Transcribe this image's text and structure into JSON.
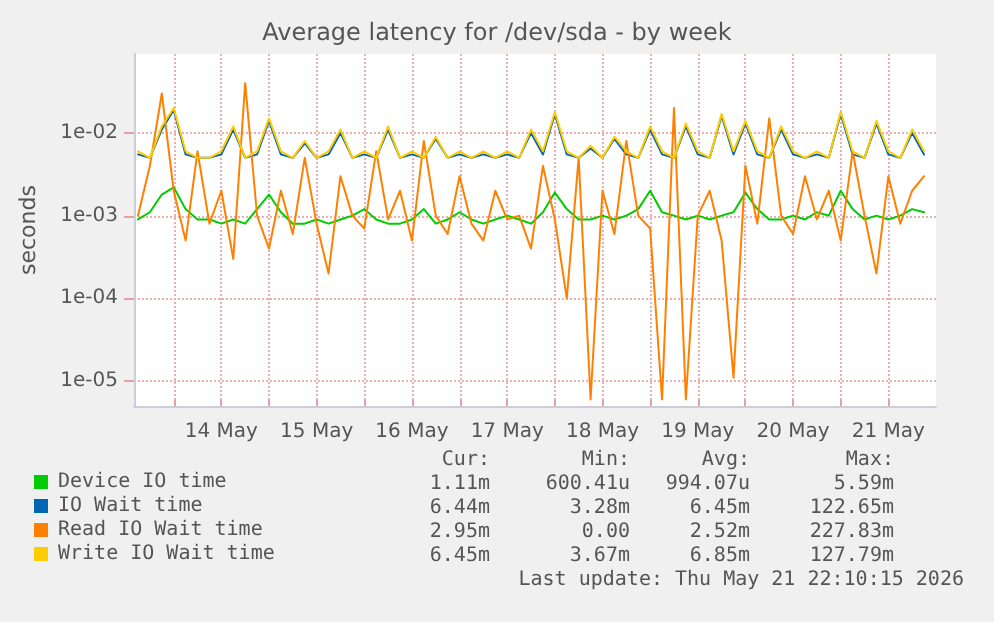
{
  "chart_data": {
    "type": "line",
    "title": "Average latency for /dev/sda - by week",
    "ylabel": "seconds",
    "log": "y",
    "grid": true,
    "legend": "bottom",
    "marker": "none",
    "line_style": "solid",
    "ylim": [
      5e-06,
      0.09
    ],
    "yticks": [
      {
        "value": 1e-05,
        "label": "1e-05"
      },
      {
        "value": 0.0001,
        "label": "1e-04"
      },
      {
        "value": 0.001,
        "label": "1e-03"
      },
      {
        "value": 0.01,
        "label": "1e-02"
      }
    ],
    "xlim": [
      "2026-05-13T14:00",
      "2026-05-22T00:00"
    ],
    "xticks": [
      {
        "value": "2026-05-14T00:00",
        "label": null
      },
      {
        "value": "2026-05-14T12:00",
        "label": "14 May"
      },
      {
        "value": "2026-05-15T00:00",
        "label": null
      },
      {
        "value": "2026-05-15T12:00",
        "label": "15 May"
      },
      {
        "value": "2026-05-16T00:00",
        "label": null
      },
      {
        "value": "2026-05-16T12:00",
        "label": "16 May"
      },
      {
        "value": "2026-05-17T00:00",
        "label": null
      },
      {
        "value": "2026-05-17T12:00",
        "label": "17 May"
      },
      {
        "value": "2026-05-18T00:00",
        "label": null
      },
      {
        "value": "2026-05-18T12:00",
        "label": "18 May"
      },
      {
        "value": "2026-05-19T00:00",
        "label": null
      },
      {
        "value": "2026-05-19T12:00",
        "label": "19 May"
      },
      {
        "value": "2026-05-20T00:00",
        "label": null
      },
      {
        "value": "2026-05-20T12:00",
        "label": "20 May"
      },
      {
        "value": "2026-05-21T00:00",
        "label": null
      },
      {
        "value": "2026-05-21T12:00",
        "label": "21 May"
      }
    ],
    "x": [
      "2026-05-13T15:00",
      "2026-05-13T18:00",
      "2026-05-13T21:00",
      "2026-05-14T00:00",
      "2026-05-14T03:00",
      "2026-05-14T06:00",
      "2026-05-14T09:00",
      "2026-05-14T12:00",
      "2026-05-14T15:00",
      "2026-05-14T18:00",
      "2026-05-14T21:00",
      "2026-05-15T00:00",
      "2026-05-15T03:00",
      "2026-05-15T06:00",
      "2026-05-15T09:00",
      "2026-05-15T12:00",
      "2026-05-15T15:00",
      "2026-05-15T18:00",
      "2026-05-15T21:00",
      "2026-05-16T00:00",
      "2026-05-16T03:00",
      "2026-05-16T06:00",
      "2026-05-16T09:00",
      "2026-05-16T12:00",
      "2026-05-16T15:00",
      "2026-05-16T18:00",
      "2026-05-16T21:00",
      "2026-05-17T00:00",
      "2026-05-17T03:00",
      "2026-05-17T06:00",
      "2026-05-17T09:00",
      "2026-05-17T12:00",
      "2026-05-17T15:00",
      "2026-05-17T18:00",
      "2026-05-17T21:00",
      "2026-05-18T00:00",
      "2026-05-18T03:00",
      "2026-05-18T06:00",
      "2026-05-18T09:00",
      "2026-05-18T12:00",
      "2026-05-18T15:00",
      "2026-05-18T18:00",
      "2026-05-18T21:00",
      "2026-05-19T00:00",
      "2026-05-19T03:00",
      "2026-05-19T06:00",
      "2026-05-19T09:00",
      "2026-05-19T12:00",
      "2026-05-19T15:00",
      "2026-05-19T18:00",
      "2026-05-19T21:00",
      "2026-05-20T00:00",
      "2026-05-20T03:00",
      "2026-05-20T06:00",
      "2026-05-20T09:00",
      "2026-05-20T12:00",
      "2026-05-20T15:00",
      "2026-05-20T18:00",
      "2026-05-20T21:00",
      "2026-05-21T00:00",
      "2026-05-21T03:00",
      "2026-05-21T06:00",
      "2026-05-21T09:00",
      "2026-05-21T12:00",
      "2026-05-21T15:00",
      "2026-05-21T18:00",
      "2026-05-21T21:00"
    ],
    "series": [
      {
        "name": "Device IO time",
        "color": "#00cc00",
        "values": [
          0.0009,
          0.0011,
          0.0018,
          0.0022,
          0.0012,
          0.0009,
          0.0009,
          0.0008,
          0.0009,
          0.0008,
          0.0012,
          0.0018,
          0.0011,
          0.0008,
          0.0008,
          0.0009,
          0.0008,
          0.0009,
          0.001,
          0.0012,
          0.0009,
          0.0008,
          0.0008,
          0.0009,
          0.0012,
          0.0008,
          0.0009,
          0.0011,
          0.0009,
          0.0008,
          0.0009,
          0.001,
          0.0009,
          0.0008,
          0.0011,
          0.0019,
          0.0012,
          0.0009,
          0.0009,
          0.001,
          0.0009,
          0.001,
          0.0012,
          0.002,
          0.0011,
          0.001,
          0.0009,
          0.001,
          0.0009,
          0.001,
          0.0011,
          0.0019,
          0.0012,
          0.0009,
          0.0009,
          0.001,
          0.0009,
          0.0011,
          0.001,
          0.002,
          0.0012,
          0.0009,
          0.001,
          0.0009,
          0.001,
          0.0012,
          0.0011
        ]
      },
      {
        "name": "IO Wait time",
        "color": "#0066b3",
        "values": [
          0.0055,
          0.005,
          0.011,
          0.019,
          0.0055,
          0.005,
          0.005,
          0.0055,
          0.011,
          0.005,
          0.0055,
          0.014,
          0.0055,
          0.005,
          0.0075,
          0.005,
          0.0055,
          0.01,
          0.005,
          0.0055,
          0.005,
          0.011,
          0.005,
          0.0055,
          0.005,
          0.0085,
          0.005,
          0.0055,
          0.005,
          0.0055,
          0.005,
          0.0055,
          0.005,
          0.01,
          0.0055,
          0.017,
          0.0055,
          0.005,
          0.0065,
          0.005,
          0.0085,
          0.0055,
          0.005,
          0.011,
          0.0055,
          0.005,
          0.012,
          0.0055,
          0.005,
          0.016,
          0.0055,
          0.013,
          0.0055,
          0.005,
          0.011,
          0.0055,
          0.005,
          0.0055,
          0.005,
          0.017,
          0.0055,
          0.005,
          0.013,
          0.0055,
          0.005,
          0.01,
          0.0055
        ]
      },
      {
        "name": "Read IO Wait time",
        "color": "#ff8000",
        "values": [
          0.001,
          0.004,
          0.03,
          0.002,
          0.0005,
          0.006,
          0.0008,
          0.002,
          0.0003,
          0.04,
          0.001,
          0.0004,
          0.002,
          0.0006,
          0.005,
          0.0008,
          0.0002,
          0.003,
          0.001,
          0.0007,
          0.006,
          0.0009,
          0.002,
          0.0005,
          0.008,
          0.001,
          0.0006,
          0.003,
          0.0008,
          0.0005,
          0.002,
          0.0009,
          0.001,
          0.0004,
          0.004,
          0.0009,
          0.0001,
          0.005,
          6e-06,
          0.002,
          0.0006,
          0.008,
          0.001,
          0.0007,
          6e-06,
          0.02,
          6e-06,
          0.001,
          0.002,
          0.0005,
          1.1e-05,
          0.004,
          0.0008,
          0.015,
          0.001,
          0.0006,
          0.003,
          0.0009,
          0.002,
          0.0005,
          0.006,
          0.001,
          0.0002,
          0.003,
          0.0008,
          0.002,
          0.003
        ]
      },
      {
        "name": "Write IO Wait time",
        "color": "#ffcc00",
        "values": [
          0.006,
          0.005,
          0.012,
          0.02,
          0.006,
          0.005,
          0.005,
          0.006,
          0.012,
          0.005,
          0.006,
          0.015,
          0.006,
          0.005,
          0.008,
          0.005,
          0.006,
          0.011,
          0.005,
          0.006,
          0.005,
          0.012,
          0.005,
          0.006,
          0.005,
          0.009,
          0.005,
          0.006,
          0.005,
          0.006,
          0.005,
          0.006,
          0.005,
          0.011,
          0.006,
          0.018,
          0.006,
          0.005,
          0.007,
          0.005,
          0.009,
          0.006,
          0.005,
          0.012,
          0.006,
          0.005,
          0.013,
          0.006,
          0.005,
          0.017,
          0.006,
          0.014,
          0.006,
          0.005,
          0.012,
          0.006,
          0.005,
          0.006,
          0.005,
          0.018,
          0.006,
          0.005,
          0.014,
          0.006,
          0.005,
          0.011,
          0.006
        ]
      }
    ],
    "annotations": [
      "Cur:",
      "Min:",
      "Avg:",
      "Max:",
      "1.11m",
      "600.41u",
      "994.07u",
      "5.59m",
      "6.44m",
      "3.28m",
      "6.45m",
      "122.65m",
      "2.95m",
      "0.00",
      "2.52m",
      "227.83m",
      "6.45m",
      "3.67m",
      "6.85m",
      "127.79m",
      "Last update: Thu May 21 22:10:15 2026"
    ]
  }
}
